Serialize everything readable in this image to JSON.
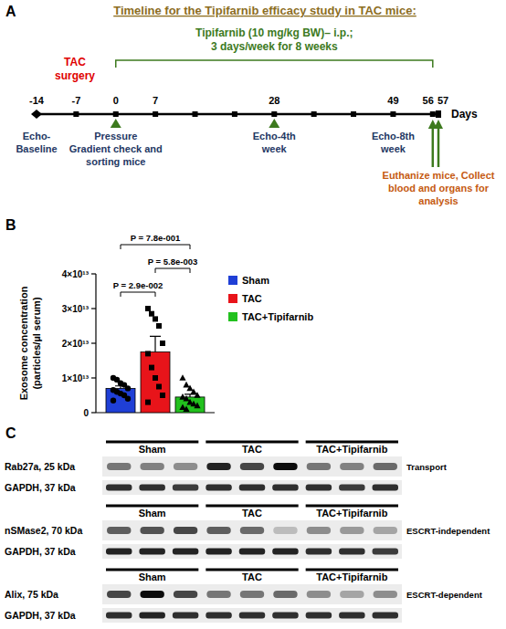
{
  "panel_labels": [
    "A",
    "B",
    "C"
  ],
  "timeline": {
    "title": "Timeline for the Tipifarnib efficacy study in TAC mice:",
    "treatment": [
      "Tipifarnib (10 mg/kg BW)– i.p.;",
      "3 days/week for 8 weeks"
    ],
    "treatment_span": [
      0,
      56
    ],
    "surgery": [
      "TAC",
      "surgery"
    ],
    "day_range": [
      -14,
      57
    ],
    "ticks": [
      -14,
      -7,
      0,
      7,
      28,
      49,
      56,
      57
    ],
    "weekly_marks": [
      -7,
      0,
      7,
      14,
      21,
      28,
      35,
      42,
      49,
      56
    ],
    "axis_label": "Days",
    "events": [
      {
        "days": [
          -14
        ],
        "lines": [
          "Echo-",
          "Baseline"
        ],
        "marker": "none"
      },
      {
        "days": [
          0
        ],
        "lines": [
          "Pressure",
          "Gradient check and",
          "sorting mice"
        ],
        "marker": "triangle"
      },
      {
        "days": [
          28
        ],
        "lines": [
          "Echo-4th",
          "week"
        ],
        "marker": "triangle"
      },
      {
        "days": [
          49
        ],
        "lines": [
          "Echo-8th",
          "week"
        ],
        "marker": "none"
      },
      {
        "days": [
          56,
          57
        ],
        "lines": [
          "Euthanize mice, Collect",
          "blood and organs for",
          "analysis"
        ],
        "marker": "arrow"
      }
    ]
  },
  "chart_data": {
    "type": "bar",
    "categories": [
      null
    ],
    "y_label": [
      "Exosome concentration",
      "(particles/µl serum)"
    ],
    "ylim": [
      0,
      40000000000000.0
    ],
    "yticks": [
      0,
      {
        "value": 10000000000000.0,
        "label": "1×10¹³"
      },
      {
        "value": 20000000000000.0,
        "label": "2×10¹³"
      },
      {
        "value": 30000000000000.0,
        "label": "3×10¹³"
      },
      {
        "value": 40000000000000.0,
        "label": "4×10¹³"
      }
    ],
    "tick_labels": "y",
    "legend": "right",
    "series": [
      {
        "name": "Sham",
        "color": "#1f3fd6",
        "marker": "circle",
        "values": [
          7000000000000.0
        ],
        "errors": [
          700000000000.0
        ],
        "points": [
          10000000000000.0,
          9500000000000.0,
          8500000000000.0,
          8000000000000.0,
          7000000000000.0,
          6500000000000.0,
          6000000000000.0,
          5500000000000.0,
          5000000000000.0,
          4000000000000.0,
          3500000000000.0
        ]
      },
      {
        "name": "TAC",
        "color": "#e8141a",
        "marker": "square",
        "values": [
          17500000000000.0
        ],
        "errors": [
          4500000000000.0
        ],
        "points": [
          30000000000000.0,
          28500000000000.0,
          27000000000000.0,
          25000000000000.0,
          20000000000000.0,
          17000000000000.0,
          13000000000000.0,
          10000000000000.0,
          7500000000000.0,
          5000000000000.0,
          3000000000000.0
        ]
      },
      {
        "name": "TAC+Tipifarnib",
        "color": "#22c11e",
        "marker": "triangle",
        "values": [
          4500000000000.0
        ],
        "errors": [
          800000000000.0
        ],
        "points": [
          10000000000000.0,
          8000000000000.0,
          7000000000000.0,
          6000000000000.0,
          5000000000000.0,
          4500000000000.0,
          4000000000000.0,
          3000000000000.0,
          2500000000000.0,
          2000000000000.0,
          1500000000000.0,
          1000000000000.0
        ]
      }
    ],
    "annotations": [
      {
        "text": "P = 7.8e-001",
        "series": [
          0,
          2
        ]
      },
      {
        "text": "P = 5.8e-003",
        "series": [
          1,
          2
        ]
      },
      {
        "text": "P = 2.9e-002",
        "series": [
          0,
          1
        ]
      }
    ]
  },
  "blots": [
    {
      "protein": "Rab27a, 25 kDa",
      "loading": "GAPDH, 37 kDa",
      "pathway": "Transport",
      "groups": [
        "Sham",
        "TAC",
        "TAC+Tipifarnib"
      ],
      "band_intensity": [
        0.5,
        0.45,
        0.4,
        0.85,
        0.7,
        0.95,
        0.5,
        0.45,
        0.55
      ],
      "loading_intensity": [
        0.8,
        0.8,
        0.75,
        0.8,
        0.8,
        0.8,
        0.8,
        0.75,
        0.8
      ]
    },
    {
      "protein": "nSMase2, 70 kDa",
      "loading": "GAPDH, 37 kDa",
      "pathway": "ESCRT-independent",
      "groups": [
        "Sham",
        "TAC",
        "TAC+Tipifarnib"
      ],
      "band_intensity": [
        0.6,
        0.65,
        0.7,
        0.6,
        0.55,
        0.2,
        0.4,
        0.35,
        0.3
      ],
      "loading_intensity": [
        0.85,
        0.85,
        0.85,
        0.85,
        0.85,
        0.85,
        0.8,
        0.8,
        0.75
      ]
    },
    {
      "protein": "Alix, 75 kDa",
      "loading": "GAPDH, 37 kDa",
      "pathway": "ESCRT-dependent",
      "groups": [
        "Sham",
        "TAC",
        "TAC+Tipifarnib"
      ],
      "band_intensity": [
        0.7,
        0.95,
        0.7,
        0.5,
        0.5,
        0.55,
        0.4,
        0.3,
        0.4
      ],
      "loading_intensity": [
        0.8,
        0.85,
        0.8,
        0.8,
        0.8,
        0.8,
        0.8,
        0.8,
        0.8
      ]
    }
  ]
}
